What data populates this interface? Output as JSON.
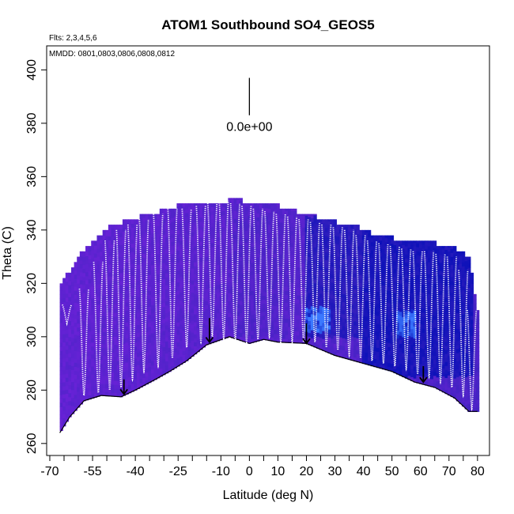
{
  "chart_data": {
    "type": "heatmap",
    "title": "ATOM1 Southbound SO4_GEOS5",
    "annotations": {
      "flights": "Flts: 2,3,4,5,6",
      "dates": "MMDD: 0801,0803,0806,0808,0812",
      "scale_label": "0.0e+00"
    },
    "xlabel": "Latitude (deg N)",
    "ylabel": "Theta (C)",
    "xlim": [
      -70,
      85
    ],
    "ylim": [
      260,
      405
    ],
    "x_ticks_labeled": [
      -70,
      -55,
      -40,
      -25,
      -10,
      0,
      10,
      20,
      30,
      40,
      50,
      60,
      70,
      80
    ],
    "x_tick_labels": [
      "-70",
      "-55",
      "-40",
      "-25",
      "-10",
      "0",
      "10",
      "20",
      "30",
      "40",
      "50",
      "60",
      "70",
      "80"
    ],
    "x_ticks_minor": [
      -65,
      -60,
      -50,
      -45,
      -35,
      -30,
      -20,
      -15,
      -5,
      5,
      15,
      25,
      35,
      45,
      55,
      65,
      75
    ],
    "y_ticks": [
      260,
      280,
      300,
      320,
      340,
      360,
      380,
      400
    ],
    "y_tick_labels": [
      "260",
      "280",
      "300",
      "320",
      "340",
      "360",
      "380",
      "400"
    ],
    "surface_boundary": [
      [
        -66.5,
        264
      ],
      [
        -63,
        270
      ],
      [
        -58,
        276
      ],
      [
        -52,
        278
      ],
      [
        -45,
        277.5
      ],
      [
        -40,
        280
      ],
      [
        -33,
        284
      ],
      [
        -28,
        287
      ],
      [
        -22,
        291
      ],
      [
        -15,
        297
      ],
      [
        -7,
        300
      ],
      [
        0,
        297.5
      ],
      [
        5,
        299
      ],
      [
        10,
        298
      ],
      [
        20,
        297.5
      ],
      [
        30,
        293
      ],
      [
        40,
        290
      ],
      [
        50,
        287
      ],
      [
        58,
        283
      ],
      [
        65,
        281
      ],
      [
        72,
        277
      ],
      [
        77,
        272
      ],
      [
        80,
        272
      ]
    ],
    "top_boundary": [
      [
        -66.5,
        318
      ],
      [
        -64,
        323
      ],
      [
        -60,
        330
      ],
      [
        -55,
        336
      ],
      [
        -48,
        342
      ],
      [
        -38,
        345
      ],
      [
        -25,
        349
      ],
      [
        -10,
        350
      ],
      [
        -5,
        352
      ],
      [
        0,
        350
      ],
      [
        10,
        349
      ],
      [
        20,
        346
      ],
      [
        30,
        343
      ],
      [
        38,
        341
      ],
      [
        45,
        338
      ],
      [
        55,
        336
      ],
      [
        65,
        335
      ],
      [
        72,
        333
      ],
      [
        77,
        330
      ],
      [
        80,
        310
      ]
    ],
    "color_scale": {
      "low": "#7a22e0",
      "mid": "#3f23c0",
      "high": "#0a10b8",
      "peak": "#3a78ff"
    },
    "enhanced_regions": [
      {
        "x": [
          20,
          40
        ],
        "y": [
          300,
          345
        ],
        "level": 0.65
      },
      {
        "x": [
          40,
          78
        ],
        "y": [
          285,
          340
        ],
        "level": 0.75
      },
      {
        "x": [
          20,
          28
        ],
        "y": [
          302,
          311
        ],
        "level": 0.95
      },
      {
        "x": [
          52,
          58
        ],
        "y": [
          300,
          310
        ],
        "level": 0.95
      },
      {
        "x": [
          -45,
          -25
        ],
        "y": [
          285,
          345
        ],
        "level": 0.25
      },
      {
        "x": [
          -5,
          15
        ],
        "y": [
          300,
          345
        ],
        "level": 0.35
      }
    ],
    "flight_profiles": {
      "x_centers": [
        -64,
        -58,
        -53,
        -49,
        -45,
        -41,
        -37,
        -32,
        -27,
        -22,
        -17,
        -13,
        -9,
        -5,
        -1,
        3,
        7,
        11,
        15,
        19,
        23,
        27,
        31,
        35,
        39,
        43,
        47,
        51,
        55,
        59,
        63,
        67,
        71,
        75,
        78
      ],
      "bottom": [
        305,
        278,
        279,
        280,
        281,
        284,
        287,
        289,
        292,
        296,
        298,
        300,
        299,
        298,
        298,
        299,
        300,
        298,
        298,
        298,
        298,
        296,
        295,
        293,
        292,
        291,
        290,
        289,
        288,
        286,
        285,
        283,
        281,
        278,
        273
      ],
      "top": [
        312,
        318,
        328,
        336,
        340,
        342,
        344,
        346,
        348,
        348,
        349,
        350,
        351,
        350,
        349,
        348,
        347,
        346,
        345,
        344,
        343,
        342,
        341,
        340,
        338,
        336,
        335,
        334,
        333,
        332,
        332,
        331,
        330,
        325,
        310
      ]
    },
    "arrows": [
      {
        "x": -44,
        "y_from": 284,
        "y_to": 278.5
      },
      {
        "x": -14,
        "y_from": 307,
        "y_to": 298
      },
      {
        "x": 20,
        "y_from": 305,
        "y_to": 297.5
      },
      {
        "x": 61,
        "y_from": 289,
        "y_to": 283
      }
    ],
    "scale_line": {
      "x": 0,
      "y_from": 383,
      "y_to": 397
    }
  }
}
